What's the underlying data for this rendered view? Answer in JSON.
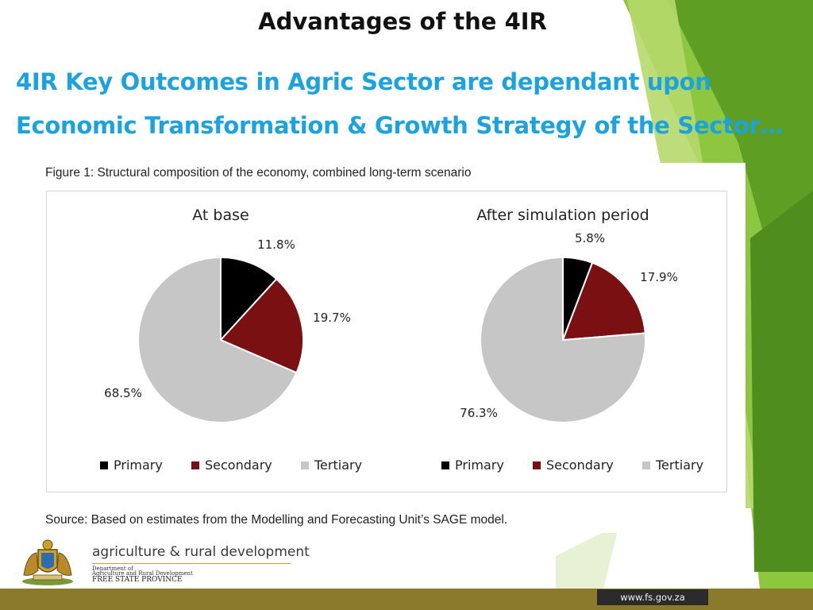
{
  "slide": {
    "title": "Advantages of the 4IR",
    "headline_line1": "4IR Key Outcomes in Agric Sector are dependant upon",
    "headline_line2": "Economic Transformation & Growth Strategy of the Sector…"
  },
  "figure": {
    "caption": "Figure 1: Structural composition of the economy, combined long-term scenario",
    "source": "Source: Based on estimates from the Modelling and Forecasting Unit’s SAGE model."
  },
  "chart_data": [
    {
      "type": "pie",
      "title": "At base",
      "categories": [
        "Primary",
        "Secondary",
        "Tertiary"
      ],
      "values": [
        11.8,
        19.7,
        68.5
      ],
      "labels": [
        "11.8%",
        "19.7%",
        "68.5%"
      ],
      "colors": [
        "#000000",
        "#7b1012",
        "#c6c6c6"
      ],
      "legend_placement": "bottom"
    },
    {
      "type": "pie",
      "title": "After simulation period",
      "categories": [
        "Primary",
        "Secondary",
        "Tertiary"
      ],
      "values": [
        5.8,
        17.9,
        76.3
      ],
      "labels": [
        "5.8%",
        "17.9%",
        "76.3%"
      ],
      "colors": [
        "#000000",
        "#7b1012",
        "#c6c6c6"
      ],
      "legend_placement": "bottom"
    }
  ],
  "logo": {
    "name": "agriculture & rural development",
    "dept_line1": "Department of",
    "dept_line2": "Agriculture and Rural Development",
    "dept_line3": "FREE STATE PROVINCE",
    "icon": "coat-of-arms-icon"
  },
  "footer": {
    "url": "www.fs.gov.za"
  },
  "colors": {
    "headline": "#1aa3e0",
    "green_light": "#9ccc3c",
    "green_dark": "#5d9c22"
  }
}
